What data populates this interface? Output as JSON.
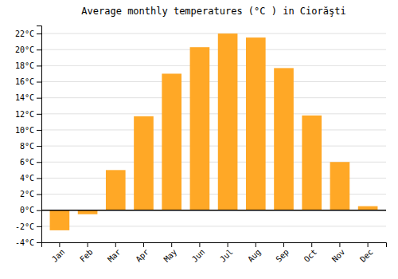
{
  "chart_data": {
    "type": "bar",
    "title": "Average monthly temperatures (°C ) in Ciorăşti",
    "categories": [
      "Jan",
      "Feb",
      "Mar",
      "Apr",
      "May",
      "Jun",
      "Jul",
      "Aug",
      "Sep",
      "Oct",
      "Nov",
      "Dec"
    ],
    "values": [
      -2.5,
      -0.5,
      5.0,
      11.7,
      17.0,
      20.3,
      22.0,
      21.5,
      17.7,
      11.8,
      6.0,
      0.5
    ],
    "color": "#FFA826",
    "ylim": [
      -4,
      23
    ],
    "yticks": [
      {
        "value": -4,
        "label": "-4°C"
      },
      {
        "value": -2,
        "label": "-2°C"
      },
      {
        "value": 0,
        "label": "0°C"
      },
      {
        "value": 2,
        "label": "2°C"
      },
      {
        "value": 4,
        "label": "4°C"
      },
      {
        "value": 6,
        "label": "6°C"
      },
      {
        "value": 8,
        "label": "8°C"
      },
      {
        "value": 10,
        "label": "10°C"
      },
      {
        "value": 12,
        "label": "12°C"
      },
      {
        "value": 14,
        "label": "14°C"
      },
      {
        "value": 16,
        "label": "16°C"
      },
      {
        "value": 18,
        "label": "18°C"
      },
      {
        "value": 20,
        "label": "20°C"
      },
      {
        "value": 22,
        "label": "22°C"
      }
    ],
    "grid": true
  }
}
